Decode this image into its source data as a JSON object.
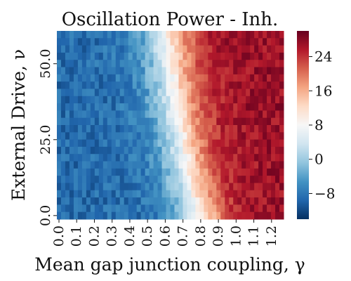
{
  "chart_data": {
    "type": "heatmap",
    "title": "Oscillation Power - Inh.",
    "xlabel": "Mean gap junction coupling, γ",
    "ylabel": "External Drive, ν",
    "x_ticks": [
      "0.0",
      "0.1",
      "0.2",
      "0.3",
      "0.4",
      "0.5",
      "0.6",
      "0.7",
      "0.8",
      "0.9",
      "1.0",
      "1.1",
      "1.2"
    ],
    "x_tick_values": [
      0.0,
      0.1,
      0.2,
      0.3,
      0.4,
      0.5,
      0.6,
      0.7,
      0.8,
      0.9,
      1.0,
      1.1,
      1.2
    ],
    "xlim": [
      0.0,
      1.28
    ],
    "y_ticks": [
      "0.0",
      "25.0",
      "50.0"
    ],
    "y_tick_values": [
      0.0,
      25.0,
      50.0
    ],
    "ylim": [
      0.0,
      62.0
    ],
    "colorbar": {
      "colormap": "RdBu_r",
      "range": [
        -14,
        30
      ],
      "ticks": [
        "−8",
        "0",
        "8",
        "16",
        "24"
      ],
      "tick_values": [
        -8,
        0,
        8,
        16,
        24
      ]
    },
    "grid": {
      "n_cols": 54,
      "n_rows": 26,
      "description_of_values": "power increases with γ; transition (≈ +4) near γ≈0.62 at ν=62 shifting to γ≈0.82 at ν=0",
      "value_min": -14,
      "value_max": 30
    }
  },
  "colors": {
    "low": "#053061",
    "mid": "#f7f7f7",
    "high": "#67001f"
  }
}
